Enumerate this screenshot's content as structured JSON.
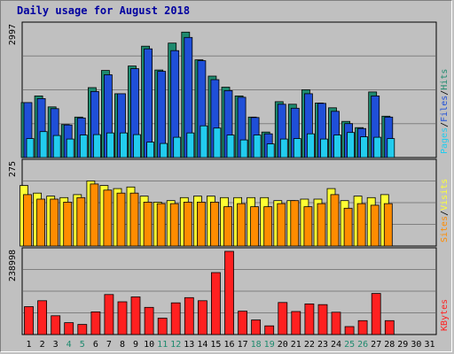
{
  "window": {
    "title": "Daily usage for August 2018"
  },
  "colors": {
    "hits": "#1e8a6e",
    "files": "#1f4fd8",
    "pages": "#22ccee",
    "visits": "#ffff33",
    "sites": "#ff8c00",
    "kbytes": "#ff2020",
    "weekend_day": "#1e8a6e",
    "weekday": "#000000",
    "title": "#0000a0",
    "panel_bg": "#c0c0c0",
    "gridline": "#808080"
  },
  "chart_data": [
    {
      "type": "bar",
      "title": "Daily usage for August 2018",
      "panel": "hits-files-pages",
      "axis_max_label": "2997",
      "ylim": [
        0,
        2997
      ],
      "grid": true,
      "legend_position": "right",
      "legend": [
        {
          "text": "Pages",
          "color_key": "pages"
        },
        {
          "text": "/",
          "color_key": "weekday"
        },
        {
          "text": "Files",
          "color_key": "files"
        },
        {
          "text": "/",
          "color_key": "weekday"
        },
        {
          "text": "Hits",
          "color_key": "hits"
        }
      ],
      "categories": [
        "1",
        "2",
        "3",
        "4",
        "5",
        "6",
        "7",
        "8",
        "9",
        "10",
        "11",
        "12",
        "13",
        "14",
        "15",
        "16",
        "17",
        "18",
        "19",
        "20",
        "21",
        "22",
        "23",
        "24",
        "25",
        "26",
        "27",
        "28",
        "29",
        "30",
        "31"
      ],
      "series": [
        {
          "name": "Hits",
          "color_key": "hits",
          "values": [
            1250,
            1400,
            1150,
            750,
            920,
            1590,
            1980,
            1450,
            2080,
            2530,
            1990,
            2600,
            2850,
            2220,
            1850,
            1600,
            1400,
            920,
            580,
            1270,
            1210,
            1540,
            1240,
            1130,
            820,
            680,
            1490,
            940,
            0,
            0,
            0
          ]
        },
        {
          "name": "Files",
          "color_key": "files",
          "values": [
            1250,
            1340,
            1110,
            740,
            900,
            1500,
            1880,
            1450,
            2020,
            2470,
            1960,
            2430,
            2730,
            2200,
            1770,
            1520,
            1370,
            910,
            540,
            1210,
            1120,
            1450,
            1230,
            1050,
            770,
            660,
            1400,
            920,
            0,
            0,
            0
          ]
        },
        {
          "name": "Pages",
          "color_key": "pages",
          "values": [
            430,
            590,
            500,
            420,
            510,
            520,
            560,
            560,
            520,
            350,
            320,
            460,
            560,
            720,
            670,
            510,
            400,
            510,
            310,
            420,
            430,
            540,
            420,
            510,
            570,
            470,
            460,
            430,
            0,
            0,
            0
          ]
        }
      ]
    },
    {
      "type": "bar",
      "panel": "visits-sites",
      "axis_max_label": "275",
      "ylim": [
        0,
        275
      ],
      "grid": true,
      "legend_position": "right",
      "legend": [
        {
          "text": "Sites",
          "color_key": "sites"
        },
        {
          "text": "/",
          "color_key": "weekday"
        },
        {
          "text": "Visits",
          "color_key": "visits"
        }
      ],
      "categories": [
        "1",
        "2",
        "3",
        "4",
        "5",
        "6",
        "7",
        "8",
        "9",
        "10",
        "11",
        "12",
        "13",
        "14",
        "15",
        "16",
        "17",
        "18",
        "19",
        "20",
        "21",
        "22",
        "23",
        "24",
        "25",
        "26",
        "27",
        "28",
        "29",
        "30",
        "31"
      ],
      "series": [
        {
          "name": "Visits",
          "color_key": "visits",
          "values": [
            200,
            175,
            165,
            160,
            170,
            215,
            200,
            190,
            195,
            165,
            145,
            150,
            160,
            165,
            165,
            160,
            160,
            160,
            160,
            150,
            150,
            155,
            155,
            190,
            150,
            165,
            160,
            170,
            0,
            0,
            0
          ]
        },
        {
          "name": "Sites",
          "color_key": "sites",
          "values": [
            170,
            155,
            155,
            145,
            160,
            205,
            185,
            175,
            175,
            145,
            140,
            140,
            145,
            145,
            145,
            130,
            140,
            130,
            130,
            140,
            150,
            130,
            140,
            170,
            125,
            140,
            135,
            140,
            0,
            0,
            0
          ]
        }
      ]
    },
    {
      "type": "bar",
      "panel": "kbytes",
      "axis_max_label": "238998",
      "ylim": [
        0,
        238998
      ],
      "grid": true,
      "legend_position": "right",
      "legend": [
        {
          "text": "KBytes",
          "color_key": "kbytes"
        }
      ],
      "categories": [
        "1",
        "2",
        "3",
        "4",
        "5",
        "6",
        "7",
        "8",
        "9",
        "10",
        "11",
        "12",
        "13",
        "14",
        "15",
        "16",
        "17",
        "18",
        "19",
        "20",
        "21",
        "22",
        "23",
        "24",
        "25",
        "26",
        "27",
        "28",
        "29",
        "30",
        "31"
      ],
      "series": [
        {
          "name": "KBytes",
          "color_key": "kbytes",
          "values": [
            80000,
            97000,
            54000,
            34000,
            29000,
            65000,
            115000,
            94000,
            108000,
            78000,
            47000,
            91000,
            106000,
            97000,
            178000,
            238998,
            67000,
            42000,
            25000,
            92000,
            66000,
            88000,
            86000,
            64000,
            23000,
            40000,
            118000,
            40000,
            0,
            0,
            0
          ]
        }
      ]
    }
  ],
  "days": {
    "labels": [
      "1",
      "2",
      "3",
      "4",
      "5",
      "6",
      "7",
      "8",
      "9",
      "10",
      "11",
      "12",
      "13",
      "14",
      "15",
      "16",
      "17",
      "18",
      "19",
      "20",
      "21",
      "22",
      "23",
      "24",
      "25",
      "26",
      "27",
      "28",
      "29",
      "30",
      "31"
    ],
    "weekend": [
      false,
      false,
      false,
      true,
      true,
      false,
      false,
      false,
      false,
      false,
      true,
      true,
      false,
      false,
      false,
      false,
      false,
      true,
      true,
      false,
      false,
      false,
      false,
      false,
      true,
      true,
      false,
      false,
      false,
      false,
      false
    ]
  }
}
